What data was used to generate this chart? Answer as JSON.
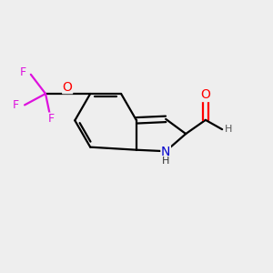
{
  "bg_color": "#eeeeee",
  "bond_color": "#000000",
  "bond_width": 1.6,
  "atom_colors": {
    "N": "#0000cc",
    "O": "#ff0000",
    "F": "#ee22ee",
    "H": "#000000",
    "C": "#000000"
  },
  "font_size_atom": 10,
  "font_size_small": 8
}
